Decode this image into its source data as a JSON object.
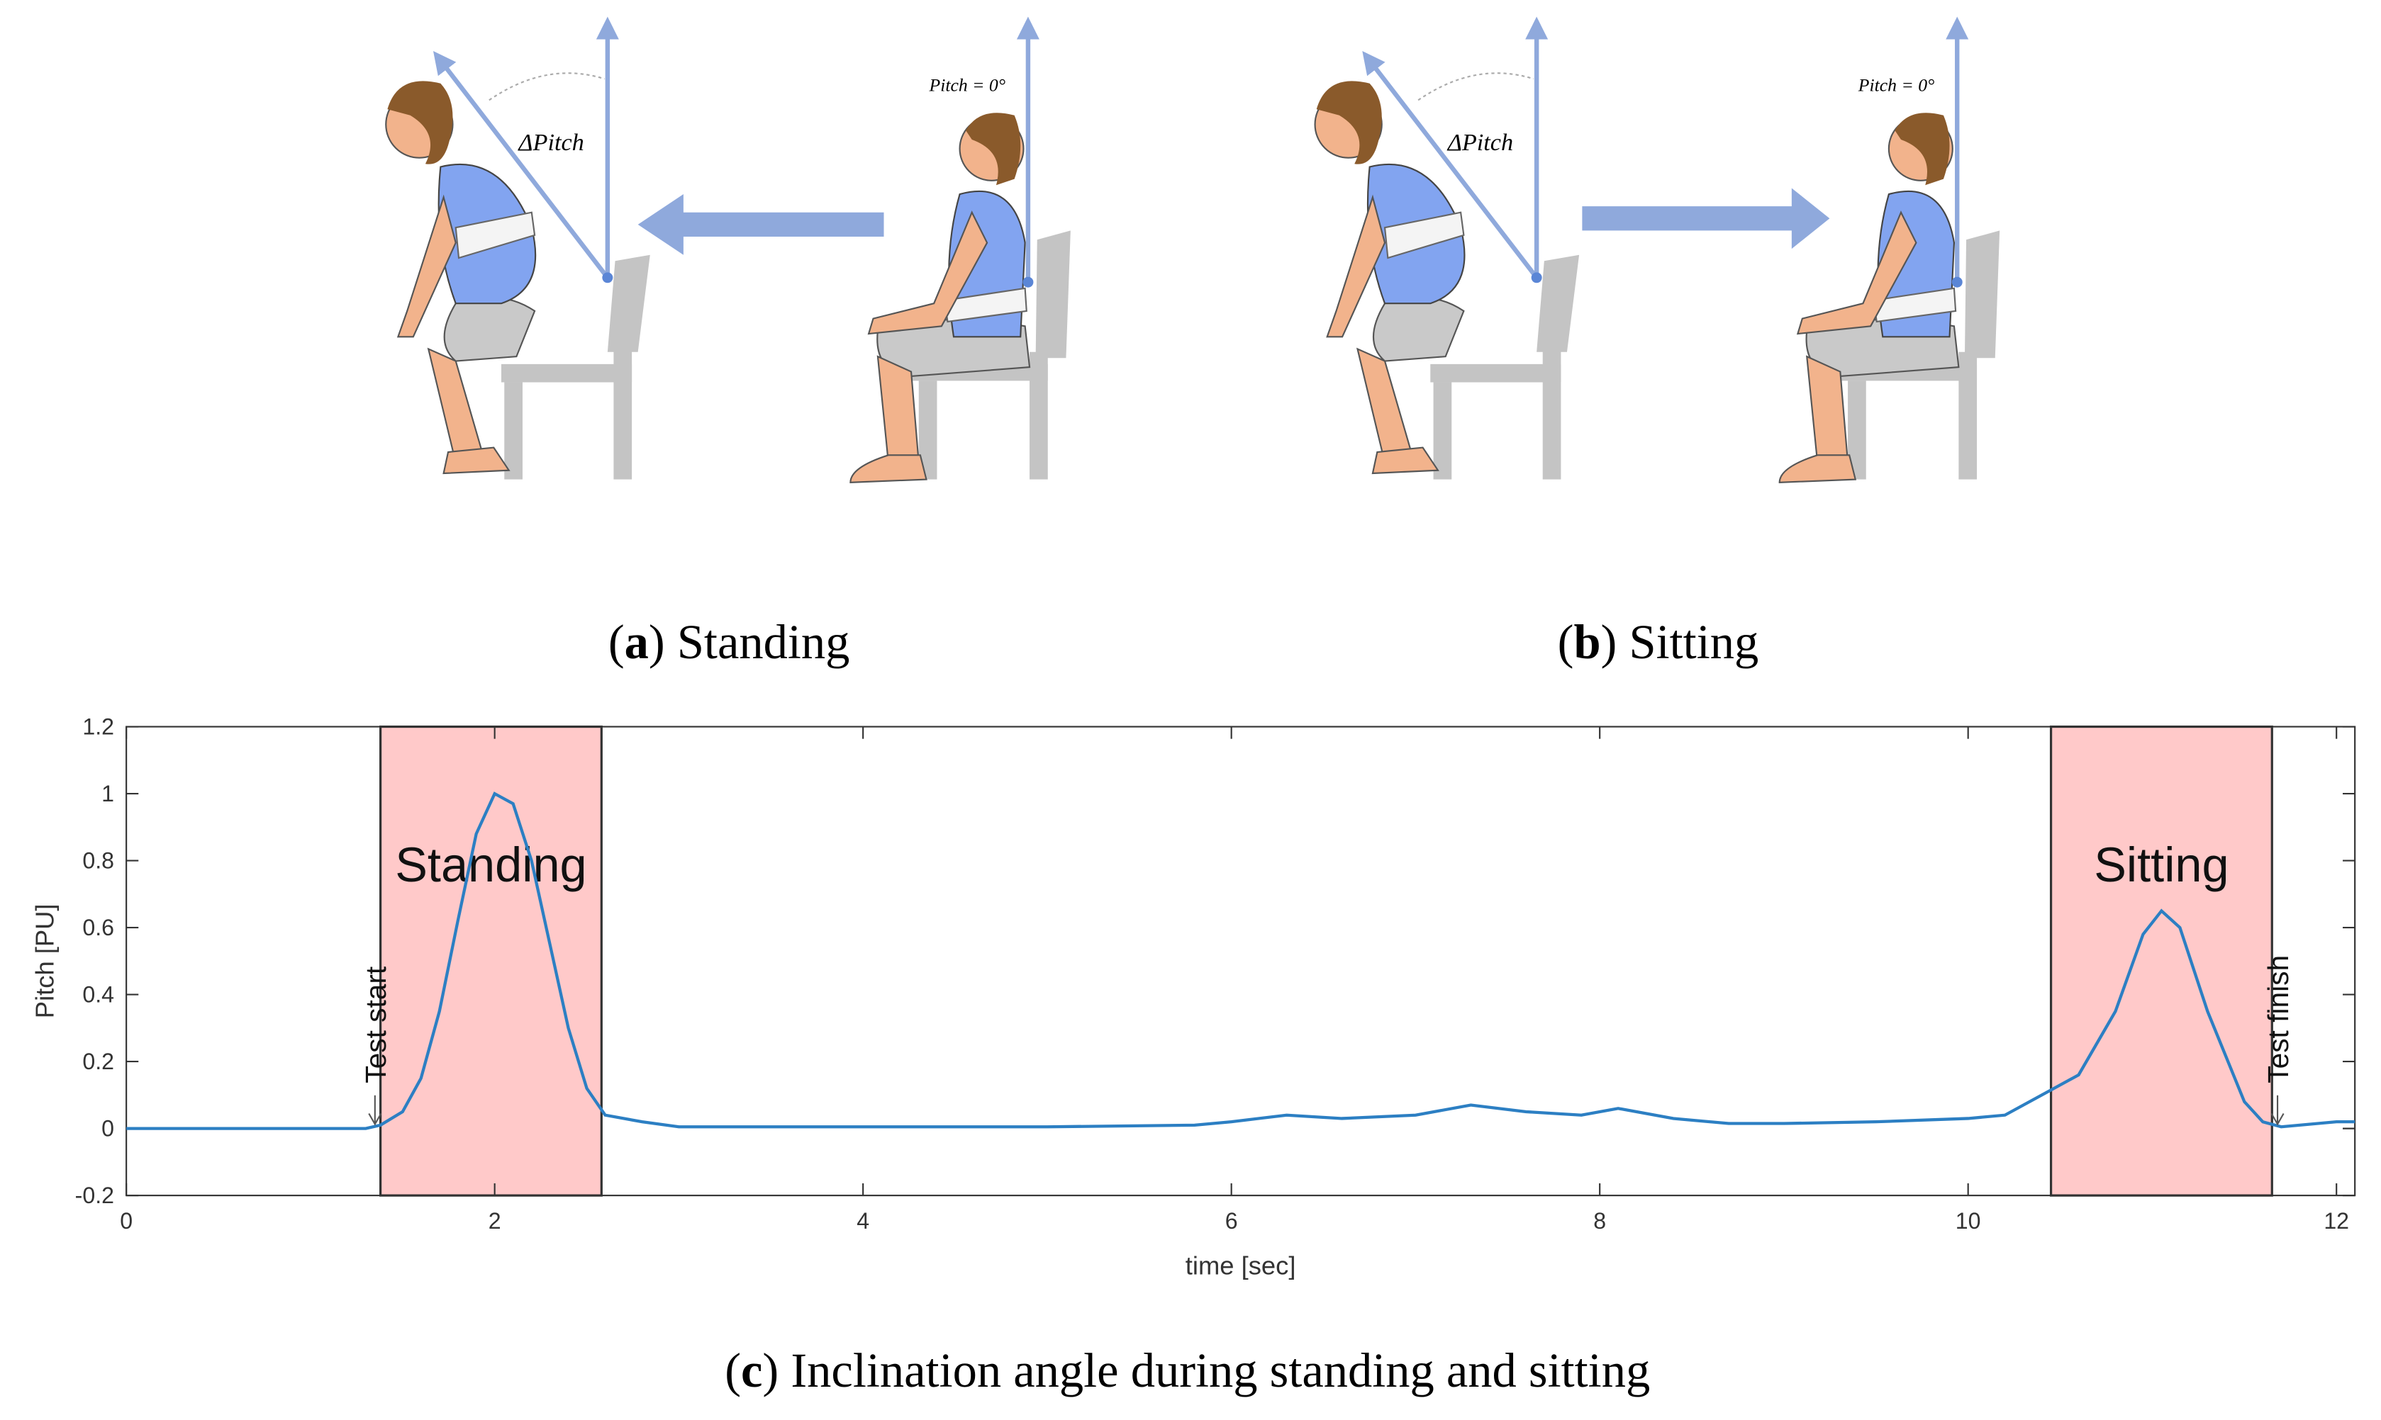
{
  "illustrations": {
    "standing": {
      "pitch_zero": "Pitch = 0°",
      "delta_pitch": "ΔPitch"
    },
    "sitting": {
      "pitch_zero": "Pitch = 0°",
      "delta_pitch": "ΔPitch"
    }
  },
  "captions": {
    "a": [
      "(",
      "a",
      ") Standing"
    ],
    "b": [
      "(",
      "b",
      ") Sitting"
    ],
    "c": [
      "(",
      "c",
      ") Inclination angle during standing and sitting"
    ]
  },
  "chart_data": {
    "type": "line",
    "x_label": "time [sec]",
    "y_label": "Pitch [PU]",
    "x": [
      0,
      1.3,
      1.38,
      1.5,
      1.6,
      1.7,
      1.8,
      1.9,
      2.0,
      2.1,
      2.2,
      2.3,
      2.4,
      2.5,
      2.6,
      2.8,
      3,
      4,
      5,
      5.8,
      6,
      6.3,
      6.6,
      7,
      7.3,
      7.6,
      7.9,
      8.1,
      8.4,
      8.7,
      9,
      9.5,
      10,
      10.2,
      10.4,
      10.6,
      10.8,
      10.95,
      11.05,
      11.15,
      11.3,
      11.5,
      11.6,
      11.7,
      12,
      12.1
    ],
    "series": [
      {
        "color": "#2c7fc3",
        "values": [
          0,
          0,
          0.01,
          0.05,
          0.15,
          0.35,
          0.62,
          0.88,
          1.0,
          0.97,
          0.8,
          0.55,
          0.3,
          0.12,
          0.04,
          0.02,
          0.005,
          0.005,
          0.005,
          0.01,
          0.02,
          0.04,
          0.03,
          0.04,
          0.07,
          0.05,
          0.04,
          0.06,
          0.03,
          0.015,
          0.015,
          0.02,
          0.03,
          0.04,
          0.1,
          0.16,
          0.35,
          0.58,
          0.65,
          0.6,
          0.35,
          0.08,
          0.02,
          0.005,
          0.02,
          0.02
        ]
      }
    ],
    "regions": [
      {
        "label": "Standing",
        "x": [
          1.38,
          2.58
        ],
        "color": "#ffc9c9"
      },
      {
        "label": "Sitting",
        "x": [
          10.45,
          11.65
        ],
        "color": "#ffc9c9"
      }
    ],
    "annotations": [
      {
        "text": "Test start",
        "x": 1.35
      },
      {
        "text": "Test finish",
        "x": 11.68
      }
    ],
    "xlim": [
      0,
      12.1
    ],
    "ylim": [
      -0.2,
      1.2
    ],
    "xticks": [
      0,
      2,
      4,
      6,
      8,
      10,
      12
    ],
    "yticks": [
      -0.2,
      0,
      0.2,
      0.4,
      0.6,
      0.8,
      1,
      1.2
    ],
    "grid": false
  }
}
